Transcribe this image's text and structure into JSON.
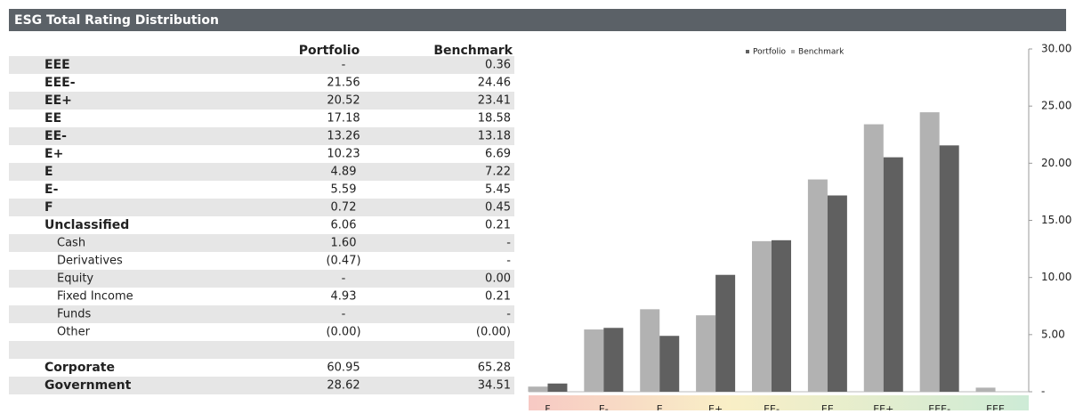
{
  "header": {
    "title": "ESG Total Rating Distribution"
  },
  "table": {
    "columns": [
      "Portfolio",
      "Benchmark"
    ],
    "rows": [
      {
        "label": "EEE",
        "portfolio": "-",
        "benchmark": "0.36",
        "sub": false
      },
      {
        "label": "EEE-",
        "portfolio": "21.56",
        "benchmark": "24.46",
        "sub": false
      },
      {
        "label": "EE+",
        "portfolio": "20.52",
        "benchmark": "23.41",
        "sub": false
      },
      {
        "label": "EE",
        "portfolio": "17.18",
        "benchmark": "18.58",
        "sub": false
      },
      {
        "label": "EE-",
        "portfolio": "13.26",
        "benchmark": "13.18",
        "sub": false
      },
      {
        "label": "E+",
        "portfolio": "10.23",
        "benchmark": "6.69",
        "sub": false
      },
      {
        "label": "E",
        "portfolio": "4.89",
        "benchmark": "7.22",
        "sub": false
      },
      {
        "label": "E-",
        "portfolio": "5.59",
        "benchmark": "5.45",
        "sub": false
      },
      {
        "label": "F",
        "portfolio": "0.72",
        "benchmark": "0.45",
        "sub": false
      },
      {
        "label": "Unclassified",
        "portfolio": "6.06",
        "benchmark": "0.21",
        "sub": false
      },
      {
        "label": "Cash",
        "portfolio": "1.60",
        "benchmark": "-",
        "sub": true
      },
      {
        "label": "Derivatives",
        "portfolio": "(0.47)",
        "benchmark": "-",
        "sub": true
      },
      {
        "label": "Equity",
        "portfolio": "-",
        "benchmark": "0.00",
        "sub": true
      },
      {
        "label": "Fixed Income",
        "portfolio": "4.93",
        "benchmark": "0.21",
        "sub": true
      },
      {
        "label": "Funds",
        "portfolio": "-",
        "benchmark": "-",
        "sub": true
      },
      {
        "label": "Other",
        "portfolio": "(0.00)",
        "benchmark": "(0.00)",
        "sub": true
      }
    ],
    "summary_rows": [
      {
        "label": "Corporate",
        "portfolio": "60.95",
        "benchmark": "65.28"
      },
      {
        "label": "Government",
        "portfolio": "28.62",
        "benchmark": "34.51"
      }
    ]
  },
  "chart_data": {
    "type": "bar",
    "categories": [
      "F",
      "E-",
      "E",
      "E+",
      "EE-",
      "EE",
      "EE+",
      "EEE-",
      "EEE"
    ],
    "series": [
      {
        "name": "Benchmark",
        "color": "#b2b2b2",
        "values": [
          0.45,
          5.45,
          7.22,
          6.69,
          13.18,
          18.58,
          23.41,
          24.46,
          0.36
        ]
      },
      {
        "name": "Portfolio",
        "color": "#606060",
        "values": [
          0.72,
          5.59,
          4.89,
          10.23,
          13.26,
          17.18,
          20.52,
          21.56,
          0
        ]
      }
    ],
    "legend_order": [
      "Portfolio",
      "Benchmark"
    ],
    "ylim": [
      0,
      30
    ],
    "yticks": [
      {
        "value": 0,
        "label": "-"
      },
      {
        "value": 5,
        "label": "5.00"
      },
      {
        "value": 10,
        "label": "10.00"
      },
      {
        "value": 15,
        "label": "15.00"
      },
      {
        "value": 20,
        "label": "20.00"
      },
      {
        "value": 25,
        "label": "25.00"
      },
      {
        "value": 30,
        "label": "30.00"
      }
    ],
    "legend": "top"
  }
}
